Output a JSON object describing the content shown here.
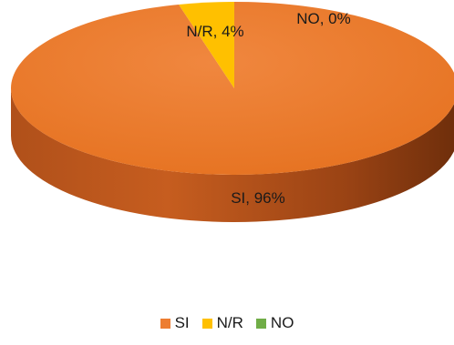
{
  "chart_data": {
    "type": "pie",
    "style": "3d",
    "categories": [
      "SI",
      "N/R",
      "NO"
    ],
    "values": [
      96,
      4,
      0
    ],
    "unit": "%",
    "data_labels": [
      "SI, 96%",
      "N/R, 4%",
      "NO, 0%"
    ],
    "colors": [
      "#ED7D31",
      "#FFC000",
      "#70AD47"
    ],
    "legend": {
      "position": "bottom",
      "entries": [
        "SI",
        "N/R",
        "NO"
      ]
    }
  }
}
